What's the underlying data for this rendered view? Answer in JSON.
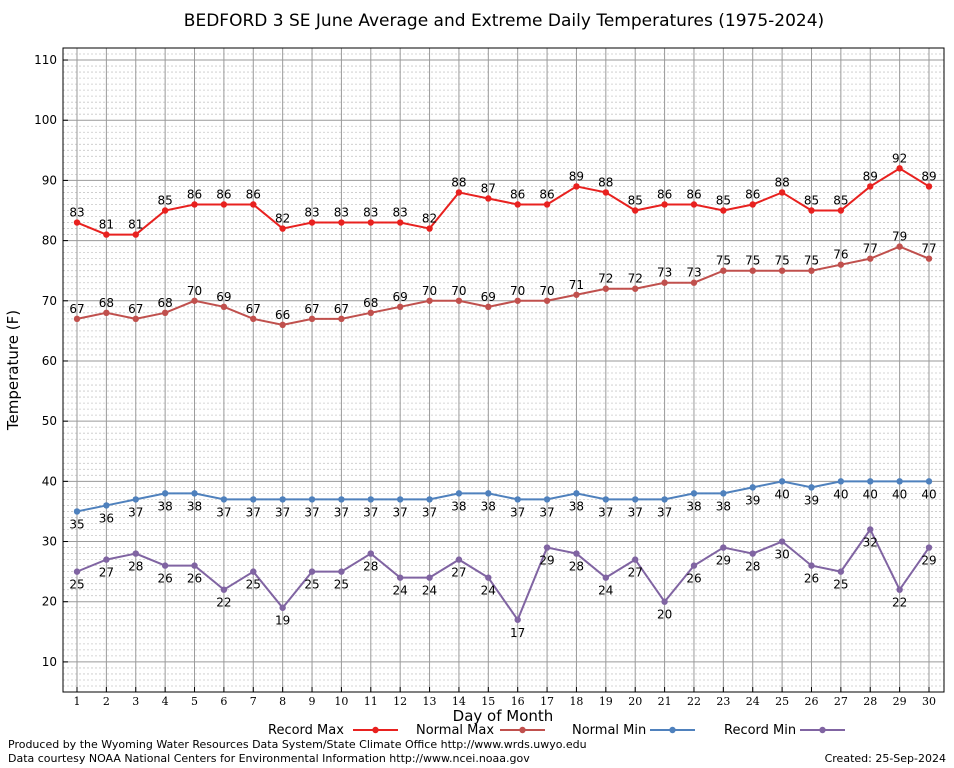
{
  "chart_data": {
    "type": "line",
    "title": "BEDFORD 3 SE June Average and Extreme Daily Temperatures (1975-2024)",
    "xlabel": "Day of Month",
    "ylabel": "Temperature (F)",
    "ylim": [
      5,
      112
    ],
    "y_ticks": [
      10,
      20,
      30,
      40,
      50,
      60,
      70,
      80,
      90,
      100,
      110
    ],
    "x": [
      1,
      2,
      3,
      4,
      5,
      6,
      7,
      8,
      9,
      10,
      11,
      12,
      13,
      14,
      15,
      16,
      17,
      18,
      19,
      20,
      21,
      22,
      23,
      24,
      25,
      26,
      27,
      28,
      29,
      30
    ],
    "grid": true,
    "legend_placement": "bottom",
    "series": [
      {
        "name": "Record Max",
        "color": "#e8211f",
        "label_position": "above",
        "values": [
          83,
          81,
          81,
          85,
          86,
          86,
          86,
          82,
          83,
          83,
          83,
          83,
          82,
          88,
          87,
          86,
          86,
          89,
          88,
          85,
          86,
          86,
          85,
          86,
          88,
          85,
          85,
          89,
          92,
          89
        ]
      },
      {
        "name": "Normal Max",
        "color": "#c0504d",
        "label_position": "above",
        "values": [
          67,
          68,
          67,
          68,
          70,
          69,
          67,
          66,
          67,
          67,
          68,
          69,
          70,
          70,
          69,
          70,
          70,
          71,
          72,
          72,
          73,
          73,
          75,
          75,
          75,
          75,
          76,
          77,
          79,
          77
        ]
      },
      {
        "name": "Normal Min",
        "color": "#4f81bd",
        "label_position": "below",
        "values": [
          35,
          36,
          37,
          38,
          38,
          37,
          37,
          37,
          37,
          37,
          37,
          37,
          37,
          38,
          38,
          37,
          37,
          38,
          37,
          37,
          37,
          38,
          38,
          39,
          40,
          39,
          40,
          40,
          40,
          40
        ]
      },
      {
        "name": "Record Min",
        "color": "#8064a2",
        "label_position": "below",
        "values": [
          25,
          27,
          28,
          26,
          26,
          22,
          25,
          19,
          25,
          25,
          28,
          24,
          24,
          27,
          24,
          17,
          29,
          28,
          24,
          27,
          20,
          26,
          29,
          28,
          30,
          26,
          25,
          32,
          22,
          29
        ]
      }
    ]
  },
  "footer": {
    "producer": "Produced by the Wyoming Water Resources Data System/State Climate Office http://www.wrds.uwyo.edu",
    "data_source": "Data courtesy NOAA National Centers for Environmental Information http://www.ncei.noaa.gov",
    "created": "Created:  25-Sep-2024"
  }
}
